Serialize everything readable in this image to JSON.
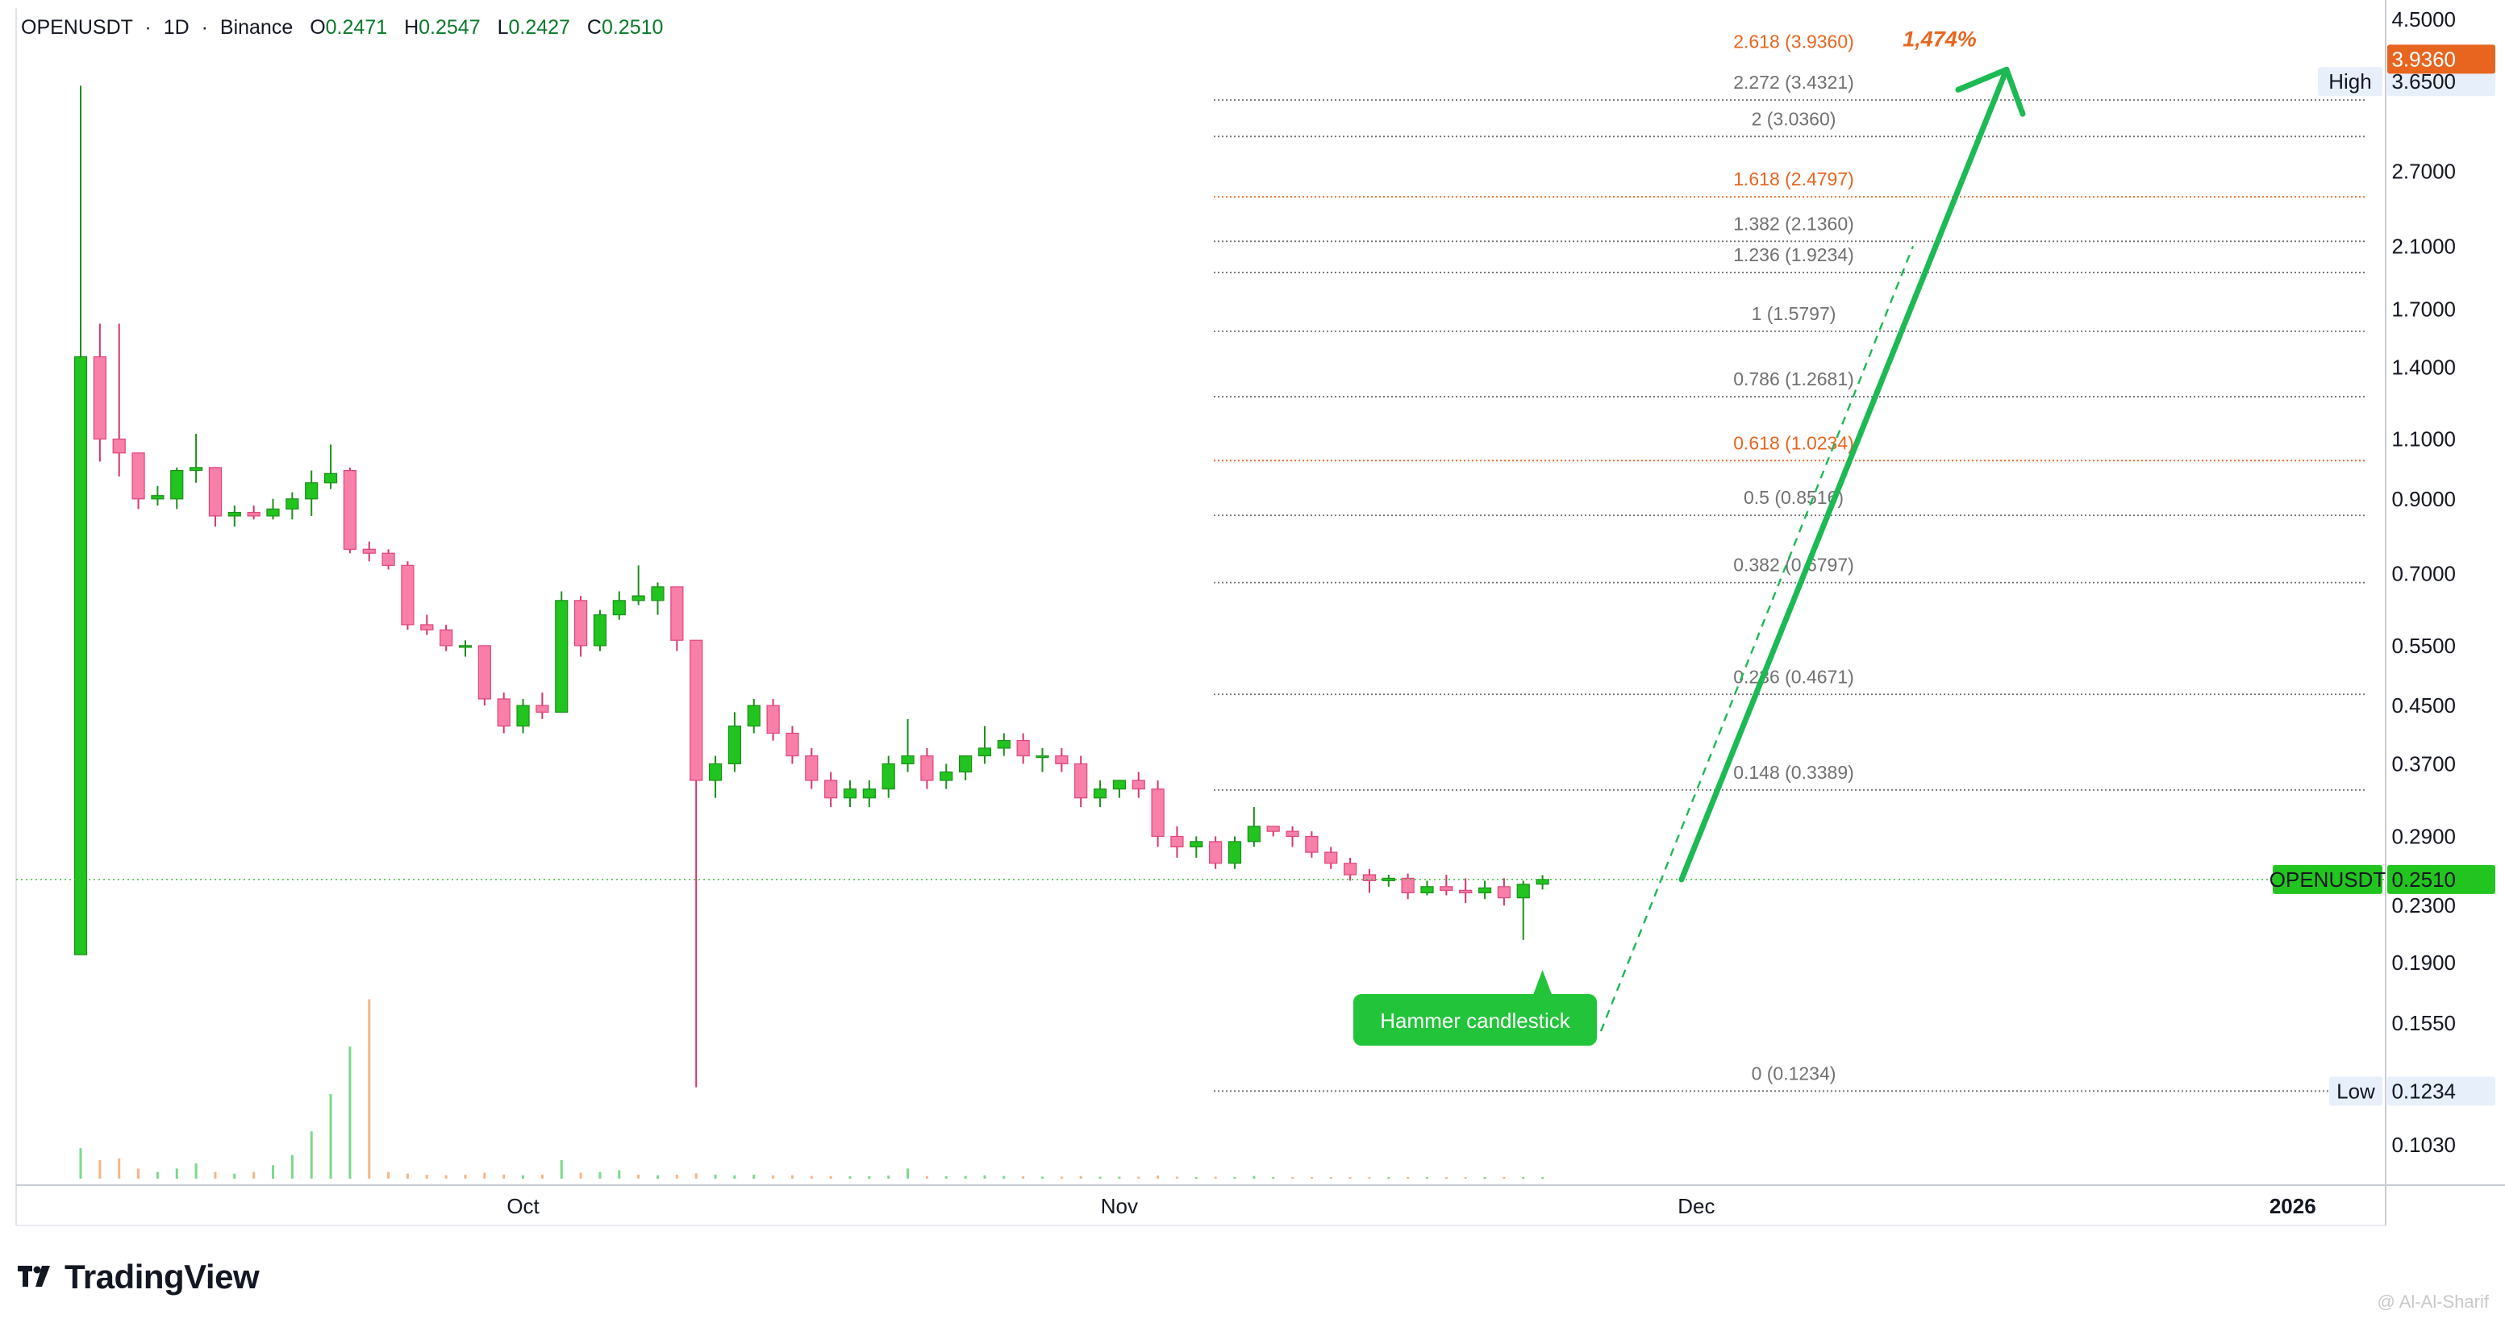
{
  "header": {
    "symbol": "OPENUSDT",
    "interval": "1D",
    "exchange": "Binance",
    "open_label": "O",
    "open": "0.2471",
    "high_label": "H",
    "high": "0.2547",
    "low_label": "L",
    "low": "0.2427",
    "close_label": "C",
    "close": "0.2510"
  },
  "brand": {
    "name": "TradingView",
    "icon": "tradingview-logo-icon"
  },
  "watermark": "@ Al-Al-Sharif",
  "colors": {
    "up": "#22c41f",
    "down": "#f77fa8",
    "down_border": "#e0457b",
    "fib_orange": "#e8651f",
    "fib_gray": "#808080",
    "arrow": "#1db954",
    "price_tag_bg": "#22c41f",
    "high_low_tag_bg": "#e7effa"
  },
  "chart_data": {
    "type": "candlestick",
    "symbol": "OPENUSDT",
    "y_scale": "log",
    "ylim": [
      0.09,
      4.8
    ],
    "y_ticks": [
      4.5,
      3.65,
      2.7,
      2.1,
      1.7,
      1.4,
      1.1,
      0.9,
      0.7,
      0.55,
      0.45,
      0.37,
      0.29,
      0.23,
      0.19,
      0.155,
      0.103
    ],
    "y_tick_labels": [
      "4.5000",
      "3.6500",
      "2.7000",
      "2.1000",
      "1.7000",
      "1.4000",
      "1.1000",
      "0.9000",
      "0.7000",
      "0.5500",
      "0.4500",
      "0.3700",
      "0.2900",
      "0.2300",
      "0.1900",
      "0.1550",
      "0.1030"
    ],
    "x_labels": [
      {
        "label": "Oct",
        "index": 23
      },
      {
        "label": "Nov",
        "index": 54
      },
      {
        "label": "Dec",
        "index": 84
      },
      {
        "label": "2026",
        "index": 115,
        "bold": true
      }
    ],
    "candles": [
      {
        "o": 0.195,
        "h": 3.6,
        "l": 0.195,
        "c": 1.45
      },
      {
        "o": 1.45,
        "h": 1.62,
        "l": 1.02,
        "c": 1.1
      },
      {
        "o": 1.1,
        "h": 1.62,
        "l": 0.97,
        "c": 1.05
      },
      {
        "o": 1.05,
        "h": 1.05,
        "l": 0.87,
        "c": 0.9
      },
      {
        "o": 0.9,
        "h": 0.94,
        "l": 0.88,
        "c": 0.91
      },
      {
        "o": 0.9,
        "h": 1.0,
        "l": 0.87,
        "c": 0.99
      },
      {
        "o": 0.99,
        "h": 1.12,
        "l": 0.95,
        "c": 1.0
      },
      {
        "o": 1.0,
        "h": 1.0,
        "l": 0.82,
        "c": 0.85
      },
      {
        "o": 0.85,
        "h": 0.88,
        "l": 0.82,
        "c": 0.86
      },
      {
        "o": 0.86,
        "h": 0.88,
        "l": 0.84,
        "c": 0.85
      },
      {
        "o": 0.85,
        "h": 0.9,
        "l": 0.84,
        "c": 0.87
      },
      {
        "o": 0.87,
        "h": 0.92,
        "l": 0.84,
        "c": 0.9
      },
      {
        "o": 0.9,
        "h": 0.99,
        "l": 0.85,
        "c": 0.95
      },
      {
        "o": 0.95,
        "h": 1.08,
        "l": 0.93,
        "c": 0.98
      },
      {
        "o": 0.99,
        "h": 1.0,
        "l": 0.75,
        "c": 0.76
      },
      {
        "o": 0.76,
        "h": 0.78,
        "l": 0.73,
        "c": 0.75
      },
      {
        "o": 0.75,
        "h": 0.76,
        "l": 0.71,
        "c": 0.72
      },
      {
        "o": 0.72,
        "h": 0.73,
        "l": 0.58,
        "c": 0.59
      },
      {
        "o": 0.59,
        "h": 0.61,
        "l": 0.57,
        "c": 0.58
      },
      {
        "o": 0.58,
        "h": 0.59,
        "l": 0.54,
        "c": 0.55
      },
      {
        "o": 0.55,
        "h": 0.56,
        "l": 0.53,
        "c": 0.55
      },
      {
        "o": 0.55,
        "h": 0.55,
        "l": 0.45,
        "c": 0.46
      },
      {
        "o": 0.46,
        "h": 0.47,
        "l": 0.41,
        "c": 0.42
      },
      {
        "o": 0.42,
        "h": 0.46,
        "l": 0.41,
        "c": 0.45
      },
      {
        "o": 0.45,
        "h": 0.47,
        "l": 0.43,
        "c": 0.44
      },
      {
        "o": 0.44,
        "h": 0.66,
        "l": 0.44,
        "c": 0.64
      },
      {
        "o": 0.64,
        "h": 0.65,
        "l": 0.53,
        "c": 0.55
      },
      {
        "o": 0.55,
        "h": 0.62,
        "l": 0.54,
        "c": 0.61
      },
      {
        "o": 0.61,
        "h": 0.66,
        "l": 0.6,
        "c": 0.64
      },
      {
        "o": 0.64,
        "h": 0.72,
        "l": 0.63,
        "c": 0.65
      },
      {
        "o": 0.64,
        "h": 0.68,
        "l": 0.61,
        "c": 0.67
      },
      {
        "o": 0.67,
        "h": 0.67,
        "l": 0.54,
        "c": 0.56
      },
      {
        "o": 0.56,
        "h": 0.56,
        "l": 0.125,
        "c": 0.35
      },
      {
        "o": 0.35,
        "h": 0.38,
        "l": 0.33,
        "c": 0.37
      },
      {
        "o": 0.37,
        "h": 0.44,
        "l": 0.36,
        "c": 0.42
      },
      {
        "o": 0.42,
        "h": 0.46,
        "l": 0.41,
        "c": 0.45
      },
      {
        "o": 0.45,
        "h": 0.46,
        "l": 0.4,
        "c": 0.41
      },
      {
        "o": 0.41,
        "h": 0.42,
        "l": 0.37,
        "c": 0.38
      },
      {
        "o": 0.38,
        "h": 0.39,
        "l": 0.34,
        "c": 0.35
      },
      {
        "o": 0.35,
        "h": 0.36,
        "l": 0.32,
        "c": 0.33
      },
      {
        "o": 0.33,
        "h": 0.35,
        "l": 0.32,
        "c": 0.34
      },
      {
        "o": 0.33,
        "h": 0.35,
        "l": 0.32,
        "c": 0.34
      },
      {
        "o": 0.34,
        "h": 0.38,
        "l": 0.33,
        "c": 0.37
      },
      {
        "o": 0.37,
        "h": 0.43,
        "l": 0.36,
        "c": 0.38
      },
      {
        "o": 0.38,
        "h": 0.39,
        "l": 0.34,
        "c": 0.35
      },
      {
        "o": 0.35,
        "h": 0.37,
        "l": 0.34,
        "c": 0.36
      },
      {
        "o": 0.36,
        "h": 0.38,
        "l": 0.35,
        "c": 0.38
      },
      {
        "o": 0.38,
        "h": 0.42,
        "l": 0.37,
        "c": 0.39
      },
      {
        "o": 0.39,
        "h": 0.41,
        "l": 0.38,
        "c": 0.4
      },
      {
        "o": 0.4,
        "h": 0.41,
        "l": 0.37,
        "c": 0.38
      },
      {
        "o": 0.38,
        "h": 0.39,
        "l": 0.36,
        "c": 0.38
      },
      {
        "o": 0.38,
        "h": 0.39,
        "l": 0.36,
        "c": 0.37
      },
      {
        "o": 0.37,
        "h": 0.38,
        "l": 0.32,
        "c": 0.33
      },
      {
        "o": 0.33,
        "h": 0.35,
        "l": 0.32,
        "c": 0.34
      },
      {
        "o": 0.34,
        "h": 0.35,
        "l": 0.33,
        "c": 0.35
      },
      {
        "o": 0.35,
        "h": 0.36,
        "l": 0.33,
        "c": 0.34
      },
      {
        "o": 0.34,
        "h": 0.35,
        "l": 0.28,
        "c": 0.29
      },
      {
        "o": 0.29,
        "h": 0.3,
        "l": 0.27,
        "c": 0.28
      },
      {
        "o": 0.28,
        "h": 0.29,
        "l": 0.27,
        "c": 0.285
      },
      {
        "o": 0.285,
        "h": 0.29,
        "l": 0.26,
        "c": 0.265
      },
      {
        "o": 0.265,
        "h": 0.29,
        "l": 0.26,
        "c": 0.285
      },
      {
        "o": 0.285,
        "h": 0.32,
        "l": 0.28,
        "c": 0.3
      },
      {
        "o": 0.3,
        "h": 0.3,
        "l": 0.29,
        "c": 0.295
      },
      {
        "o": 0.295,
        "h": 0.3,
        "l": 0.28,
        "c": 0.29
      },
      {
        "o": 0.29,
        "h": 0.295,
        "l": 0.27,
        "c": 0.275
      },
      {
        "o": 0.275,
        "h": 0.28,
        "l": 0.26,
        "c": 0.265
      },
      {
        "o": 0.265,
        "h": 0.27,
        "l": 0.25,
        "c": 0.255
      },
      {
        "o": 0.255,
        "h": 0.26,
        "l": 0.24,
        "c": 0.25
      },
      {
        "o": 0.25,
        "h": 0.255,
        "l": 0.245,
        "c": 0.252
      },
      {
        "o": 0.252,
        "h": 0.256,
        "l": 0.235,
        "c": 0.24
      },
      {
        "o": 0.24,
        "h": 0.25,
        "l": 0.238,
        "c": 0.245
      },
      {
        "o": 0.245,
        "h": 0.255,
        "l": 0.238,
        "c": 0.242
      },
      {
        "o": 0.242,
        "h": 0.252,
        "l": 0.232,
        "c": 0.24
      },
      {
        "o": 0.24,
        "h": 0.25,
        "l": 0.235,
        "c": 0.244
      },
      {
        "o": 0.245,
        "h": 0.252,
        "l": 0.23,
        "c": 0.236
      },
      {
        "o": 0.236,
        "h": 0.25,
        "l": 0.205,
        "c": 0.247
      },
      {
        "o": 0.2471,
        "h": 0.2547,
        "l": 0.2427,
        "c": 0.251
      }
    ],
    "volumes": [
      {
        "v": 0.09,
        "up": true
      },
      {
        "v": 0.055,
        "up": false
      },
      {
        "v": 0.06,
        "up": false
      },
      {
        "v": 0.03,
        "up": false
      },
      {
        "v": 0.02,
        "up": true
      },
      {
        "v": 0.03,
        "up": true
      },
      {
        "v": 0.045,
        "up": true
      },
      {
        "v": 0.02,
        "up": false
      },
      {
        "v": 0.015,
        "up": true
      },
      {
        "v": 0.02,
        "up": false
      },
      {
        "v": 0.04,
        "up": true
      },
      {
        "v": 0.07,
        "up": true
      },
      {
        "v": 0.14,
        "up": true
      },
      {
        "v": 0.25,
        "up": true
      },
      {
        "v": 0.39,
        "up": true
      },
      {
        "v": 0.53,
        "up": false
      },
      {
        "v": 0.02,
        "up": false
      },
      {
        "v": 0.015,
        "up": false
      },
      {
        "v": 0.012,
        "up": false
      },
      {
        "v": 0.01,
        "up": false
      },
      {
        "v": 0.012,
        "up": false
      },
      {
        "v": 0.018,
        "up": false
      },
      {
        "v": 0.012,
        "up": false
      },
      {
        "v": 0.01,
        "up": true
      },
      {
        "v": 0.012,
        "up": false
      },
      {
        "v": 0.055,
        "up": true
      },
      {
        "v": 0.018,
        "up": false
      },
      {
        "v": 0.02,
        "up": true
      },
      {
        "v": 0.025,
        "up": true
      },
      {
        "v": 0.012,
        "up": false
      },
      {
        "v": 0.01,
        "up": true
      },
      {
        "v": 0.012,
        "up": false
      },
      {
        "v": 0.016,
        "up": false
      },
      {
        "v": 0.012,
        "up": true
      },
      {
        "v": 0.01,
        "up": true
      },
      {
        "v": 0.012,
        "up": true
      },
      {
        "v": 0.01,
        "up": false
      },
      {
        "v": 0.01,
        "up": false
      },
      {
        "v": 0.008,
        "up": false
      },
      {
        "v": 0.008,
        "up": false
      },
      {
        "v": 0.007,
        "up": true
      },
      {
        "v": 0.007,
        "up": true
      },
      {
        "v": 0.009,
        "up": true
      },
      {
        "v": 0.03,
        "up": true
      },
      {
        "v": 0.008,
        "up": false
      },
      {
        "v": 0.007,
        "up": true
      },
      {
        "v": 0.008,
        "up": true
      },
      {
        "v": 0.01,
        "up": true
      },
      {
        "v": 0.008,
        "up": true
      },
      {
        "v": 0.007,
        "up": false
      },
      {
        "v": 0.006,
        "up": true
      },
      {
        "v": 0.006,
        "up": false
      },
      {
        "v": 0.008,
        "up": false
      },
      {
        "v": 0.006,
        "up": true
      },
      {
        "v": 0.006,
        "up": true
      },
      {
        "v": 0.006,
        "up": false
      },
      {
        "v": 0.009,
        "up": false
      },
      {
        "v": 0.006,
        "up": false
      },
      {
        "v": 0.005,
        "up": true
      },
      {
        "v": 0.006,
        "up": false
      },
      {
        "v": 0.005,
        "up": true
      },
      {
        "v": 0.008,
        "up": true
      },
      {
        "v": 0.005,
        "up": true
      },
      {
        "v": 0.005,
        "up": false
      },
      {
        "v": 0.005,
        "up": false
      },
      {
        "v": 0.005,
        "up": false
      },
      {
        "v": 0.005,
        "up": false
      },
      {
        "v": 0.004,
        "up": false
      },
      {
        "v": 0.004,
        "up": true
      },
      {
        "v": 0.004,
        "up": false
      },
      {
        "v": 0.004,
        "up": true
      },
      {
        "v": 0.004,
        "up": false
      },
      {
        "v": 0.004,
        "up": false
      },
      {
        "v": 0.004,
        "up": true
      },
      {
        "v": 0.004,
        "up": false
      },
      {
        "v": 0.005,
        "up": true
      },
      {
        "v": 0.004,
        "up": true
      }
    ],
    "fib_levels": [
      {
        "ratio": "2.618",
        "price": 3.936,
        "label": "2.618 (3.9360)",
        "color": "orange",
        "bold": true
      },
      {
        "ratio": "2.272",
        "price": 3.4321,
        "label": "2.272 (3.4321)",
        "color": "gray"
      },
      {
        "ratio": "2",
        "price": 3.036,
        "label": "2 (3.0360)",
        "color": "gray"
      },
      {
        "ratio": "1.618",
        "price": 2.4797,
        "label": "1.618 (2.4797)",
        "color": "orange"
      },
      {
        "ratio": "1.382",
        "price": 2.136,
        "label": "1.382 (2.1360)",
        "color": "gray"
      },
      {
        "ratio": "1.236",
        "price": 1.9234,
        "label": "1.236 (1.9234)",
        "color": "gray"
      },
      {
        "ratio": "1",
        "price": 1.5797,
        "label": "1 (1.5797)",
        "color": "gray"
      },
      {
        "ratio": "0.786",
        "price": 1.2681,
        "label": "0.786 (1.2681)",
        "color": "gray"
      },
      {
        "ratio": "0.618",
        "price": 1.0234,
        "label": "0.618 (1.0234)",
        "color": "orange"
      },
      {
        "ratio": "0.5",
        "price": 0.8516,
        "label": "0.5 (0.8516)",
        "color": "gray"
      },
      {
        "ratio": "0.382",
        "price": 0.6797,
        "label": "0.382 (0.6797)",
        "color": "gray"
      },
      {
        "ratio": "0.236",
        "price": 0.4671,
        "label": "0.236 (0.4671)",
        "color": "gray"
      },
      {
        "ratio": "0.148",
        "price": 0.3389,
        "label": "0.148 (0.3389)",
        "color": "gray"
      },
      {
        "ratio": "0",
        "price": 0.1234,
        "label": "0 (0.1234)",
        "color": "gray"
      }
    ],
    "target_percent_label": "1,474%",
    "annotation": {
      "text": "Hammer candlestick",
      "candle_index": 76
    },
    "projection_arrow": {
      "from_price": 0.251,
      "to_price": 3.65
    },
    "dashed_projection": {
      "from_price": 0.155,
      "to_price": 2.136
    },
    "current_price": {
      "label": "OPENUSDT",
      "value": "0.2510",
      "price": 0.251
    },
    "target_tag": {
      "value": "3.9360",
      "price": 3.936
    },
    "high_tag": {
      "label": "High",
      "value": "3.6500",
      "price": 3.65
    },
    "low_tag": {
      "label": "Low",
      "value": "0.1234",
      "price": 0.1234
    }
  }
}
